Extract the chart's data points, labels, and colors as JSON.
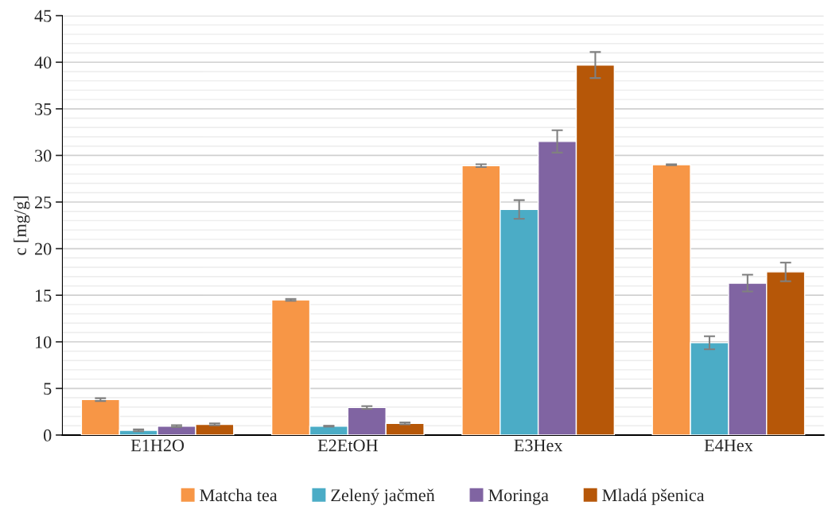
{
  "chart_data": {
    "type": "bar",
    "ylabel": "c [mg/g]",
    "categories": [
      "E1H2O",
      "E2EtOH",
      "E3Hex",
      "E4Hex"
    ],
    "series": [
      {
        "name": "Matcha tea",
        "color": "#f79646",
        "values": [
          3.8,
          14.5,
          28.9,
          29.0
        ],
        "errors": [
          0.15,
          0.1,
          0.15,
          0.05
        ]
      },
      {
        "name": "Zelený jačmeň",
        "color": "#4bacc6",
        "values": [
          0.5,
          0.95,
          24.2,
          9.9
        ],
        "errors": [
          0.1,
          0.05,
          1.0,
          0.7
        ]
      },
      {
        "name": "Moringa",
        "color": "#8064a2",
        "values": [
          0.95,
          2.95,
          31.5,
          16.3
        ],
        "errors": [
          0.1,
          0.15,
          1.2,
          0.9
        ]
      },
      {
        "name": "Mladá pšenica",
        "color": "#b65708",
        "values": [
          1.15,
          1.25,
          39.7,
          17.5
        ],
        "errors": [
          0.1,
          0.1,
          1.4,
          1.0
        ]
      }
    ],
    "ylim": [
      0,
      45
    ],
    "yticks": [
      0,
      5,
      10,
      15,
      20,
      25,
      30,
      35,
      40,
      45
    ],
    "grid": "y",
    "legend": "bottom"
  }
}
